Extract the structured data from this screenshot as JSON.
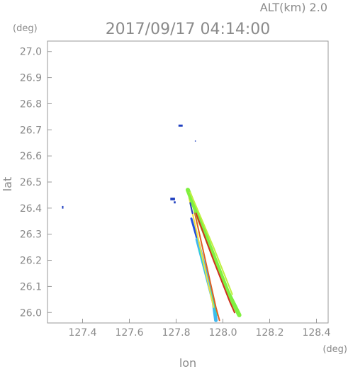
{
  "header": {
    "alt_label": "ALT(km)  2.0",
    "datetime": "2017/09/17  04:14:00"
  },
  "axes": {
    "y_unit": "(deg)",
    "x_unit": "(deg)",
    "xlabel": "lon",
    "ylabel": "lat"
  },
  "chart_data": {
    "type": "scatter",
    "title": "2017/09/17  04:14:00",
    "subtitle": "ALT(km)  2.0",
    "xlabel": "lon",
    "ylabel": "lat",
    "x_unit": "(deg)",
    "y_unit": "(deg)",
    "xlim": [
      127.25,
      128.45
    ],
    "ylim": [
      25.96,
      27.04
    ],
    "x_ticks": [
      127.4,
      127.6,
      127.8,
      128.0,
      128.2,
      128.4
    ],
    "x_tick_labels": [
      "127.4",
      "127.6",
      "127.8",
      "128.0",
      "128.2",
      "128.4"
    ],
    "y_ticks": [
      26.0,
      26.1,
      26.2,
      26.3,
      26.4,
      26.5,
      26.6,
      26.7,
      26.8,
      26.9,
      27.0
    ],
    "y_tick_labels": [
      "26.0",
      "26.1",
      "26.2",
      "26.3",
      "26.4",
      "26.5",
      "26.6",
      "26.7",
      "26.8",
      "26.9",
      "27.0"
    ],
    "grid": false,
    "legend": "none",
    "segments": [
      {
        "color": "#2050e0",
        "width": 3,
        "points": [
          [
            127.865,
            26.36
          ],
          [
            127.9,
            26.25
          ],
          [
            127.93,
            26.15
          ]
        ]
      },
      {
        "color": "#40b8f0",
        "width": 5,
        "points": [
          [
            127.89,
            26.28
          ],
          [
            127.925,
            26.16
          ],
          [
            127.96,
            26.04
          ],
          [
            127.97,
            25.97
          ]
        ]
      },
      {
        "color": "#30e0c0",
        "width": 2,
        "points": [
          [
            127.9,
            26.24
          ],
          [
            127.935,
            26.12
          ],
          [
            127.975,
            25.99
          ]
        ]
      },
      {
        "color": "#e06020",
        "width": 2,
        "points": [
          [
            127.86,
            26.46
          ],
          [
            127.92,
            26.22
          ],
          [
            127.97,
            26.02
          ],
          [
            127.985,
            25.97
          ]
        ]
      },
      {
        "color": "#f0e040",
        "width": 2,
        "points": [
          [
            127.855,
            26.44
          ],
          [
            127.91,
            26.22
          ],
          [
            127.96,
            26.02
          ]
        ]
      },
      {
        "color": "#80f040",
        "width": 6,
        "points": [
          [
            127.85,
            26.47
          ],
          [
            127.95,
            26.24
          ],
          [
            128.02,
            26.08
          ],
          [
            128.07,
            25.99
          ]
        ]
      },
      {
        "color": "#d03020",
        "width": 2,
        "points": [
          [
            127.885,
            26.38
          ],
          [
            127.96,
            26.2
          ],
          [
            128.03,
            26.04
          ],
          [
            128.05,
            26.0
          ]
        ]
      },
      {
        "color": "#c0f040",
        "width": 2,
        "points": [
          [
            127.86,
            26.46
          ],
          [
            127.96,
            26.25
          ],
          [
            128.04,
            26.07
          ]
        ]
      },
      {
        "color": "#2040c0",
        "width": 2,
        "points": [
          [
            127.86,
            26.42
          ],
          [
            127.87,
            26.38
          ]
        ]
      }
    ],
    "blobs": [
      {
        "color": "#2040c0",
        "x": 127.81,
        "y": 26.712,
        "w": 0.018,
        "h": 0.008
      },
      {
        "color": "#2040c0",
        "x": 127.775,
        "y": 26.43,
        "w": 0.02,
        "h": 0.01
      },
      {
        "color": "#2040c0",
        "x": 127.79,
        "y": 26.418,
        "w": 0.008,
        "h": 0.008
      },
      {
        "color": "#2040c0",
        "x": 127.312,
        "y": 26.398,
        "w": 0.006,
        "h": 0.01
      },
      {
        "color": "#2040c0",
        "x": 127.88,
        "y": 26.655,
        "w": 0.004,
        "h": 0.004
      }
    ]
  }
}
